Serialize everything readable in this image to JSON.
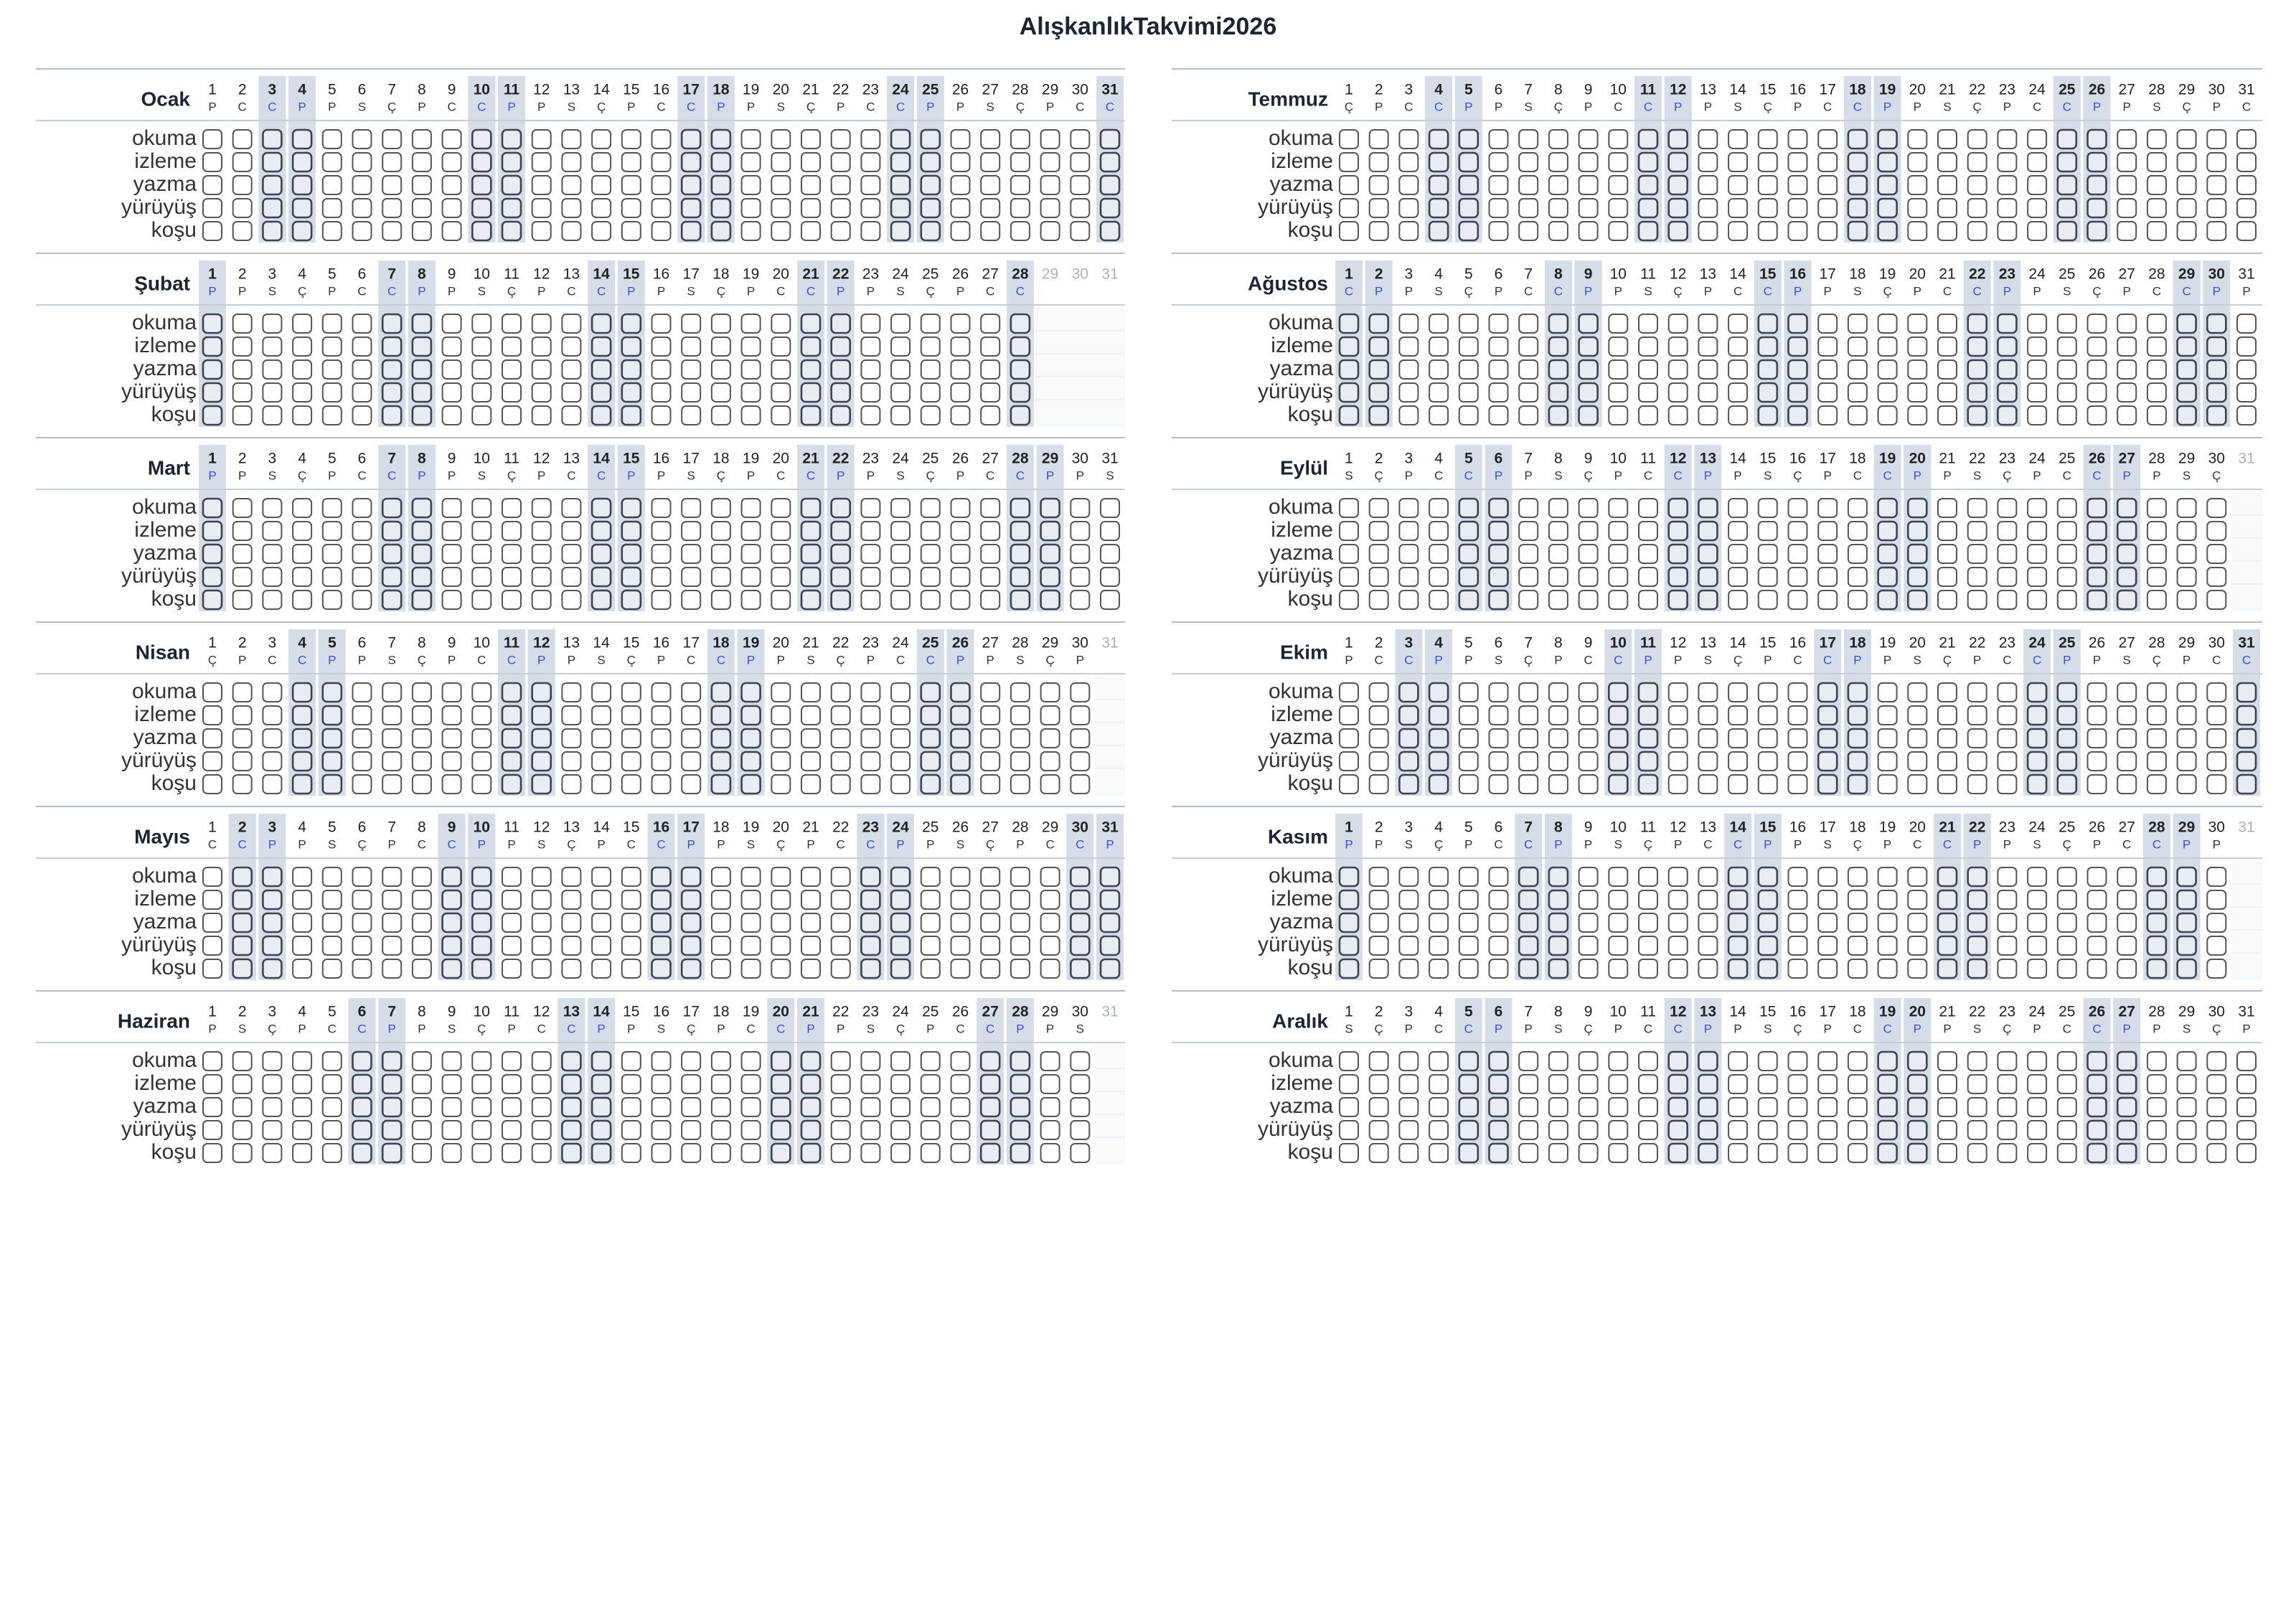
{
  "title": "AlışkanlıkTakvimi2026",
  "days": [
    1,
    2,
    3,
    4,
    5,
    6,
    7,
    8,
    9,
    10,
    11,
    12,
    13,
    14,
    15,
    16,
    17,
    18,
    19,
    20,
    21,
    22,
    23,
    24,
    25,
    26,
    27,
    28,
    29,
    30,
    31
  ],
  "habits": [
    "okuma",
    "izleme",
    "yazma",
    "yürüyüş",
    "koşu"
  ],
  "months": [
    {
      "name": "Ocak",
      "weekdays": [
        "P",
        "C",
        "C",
        "P",
        "P",
        "S",
        "Ç",
        "P",
        "C",
        "C",
        "P",
        "P",
        "S",
        "Ç",
        "P",
        "C",
        "C",
        "P",
        "P",
        "S",
        "Ç",
        "P",
        "C",
        "C",
        "P",
        "P",
        "S",
        "Ç",
        "P",
        "C",
        "C"
      ]
    },
    {
      "name": "Şubat",
      "weekdays": [
        "P",
        "P",
        "S",
        "Ç",
        "P",
        "C",
        "C",
        "P",
        "P",
        "S",
        "Ç",
        "P",
        "C",
        "C",
        "P",
        "P",
        "S",
        "Ç",
        "P",
        "C",
        "C",
        "P",
        "P",
        "S",
        "Ç",
        "P",
        "C",
        "C"
      ]
    },
    {
      "name": "Mart",
      "weekdays": [
        "P",
        "P",
        "S",
        "Ç",
        "P",
        "C",
        "C",
        "P",
        "P",
        "S",
        "Ç",
        "P",
        "C",
        "C",
        "P",
        "P",
        "S",
        "Ç",
        "P",
        "C",
        "C",
        "P",
        "P",
        "S",
        "Ç",
        "P",
        "C",
        "C",
        "P",
        "P",
        "S"
      ]
    },
    {
      "name": "Nisan",
      "weekdays": [
        "Ç",
        "P",
        "C",
        "C",
        "P",
        "P",
        "S",
        "Ç",
        "P",
        "C",
        "C",
        "P",
        "P",
        "S",
        "Ç",
        "P",
        "C",
        "C",
        "P",
        "P",
        "S",
        "Ç",
        "P",
        "C",
        "C",
        "P",
        "P",
        "S",
        "Ç",
        "P"
      ]
    },
    {
      "name": "Mayıs",
      "weekdays": [
        "C",
        "C",
        "P",
        "P",
        "S",
        "Ç",
        "P",
        "C",
        "C",
        "P",
        "P",
        "S",
        "Ç",
        "P",
        "C",
        "C",
        "P",
        "P",
        "S",
        "Ç",
        "P",
        "C",
        "C",
        "P",
        "P",
        "S",
        "Ç",
        "P",
        "C",
        "C",
        "P"
      ]
    },
    {
      "name": "Haziran",
      "weekdays": [
        "P",
        "S",
        "Ç",
        "P",
        "C",
        "C",
        "P",
        "P",
        "S",
        "Ç",
        "P",
        "C",
        "C",
        "P",
        "P",
        "S",
        "Ç",
        "P",
        "C",
        "C",
        "P",
        "P",
        "S",
        "Ç",
        "P",
        "C",
        "C",
        "P",
        "P",
        "S"
      ]
    },
    {
      "name": "Temmuz",
      "weekdays": [
        "Ç",
        "P",
        "C",
        "C",
        "P",
        "P",
        "S",
        "Ç",
        "P",
        "C",
        "C",
        "P",
        "P",
        "S",
        "Ç",
        "P",
        "C",
        "C",
        "P",
        "P",
        "S",
        "Ç",
        "P",
        "C",
        "C",
        "P",
        "P",
        "S",
        "Ç",
        "P",
        "C"
      ]
    },
    {
      "name": "Ağustos",
      "weekdays": [
        "C",
        "P",
        "P",
        "S",
        "Ç",
        "P",
        "C",
        "C",
        "P",
        "P",
        "S",
        "Ç",
        "P",
        "C",
        "C",
        "P",
        "P",
        "S",
        "Ç",
        "P",
        "C",
        "C",
        "P",
        "P",
        "S",
        "Ç",
        "P",
        "C",
        "C",
        "P",
        "P"
      ]
    },
    {
      "name": "Eylül",
      "weekdays": [
        "S",
        "Ç",
        "P",
        "C",
        "C",
        "P",
        "P",
        "S",
        "Ç",
        "P",
        "C",
        "C",
        "P",
        "P",
        "S",
        "Ç",
        "P",
        "C",
        "C",
        "P",
        "P",
        "S",
        "Ç",
        "P",
        "C",
        "C",
        "P",
        "P",
        "S",
        "Ç"
      ]
    },
    {
      "name": "Ekim",
      "weekdays": [
        "P",
        "C",
        "C",
        "P",
        "P",
        "S",
        "Ç",
        "P",
        "C",
        "C",
        "P",
        "P",
        "S",
        "Ç",
        "P",
        "C",
        "C",
        "P",
        "P",
        "S",
        "Ç",
        "P",
        "C",
        "C",
        "P",
        "P",
        "S",
        "Ç",
        "P",
        "C",
        "C"
      ]
    },
    {
      "name": "Kasım",
      "weekdays": [
        "P",
        "P",
        "S",
        "Ç",
        "P",
        "C",
        "C",
        "P",
        "P",
        "S",
        "Ç",
        "P",
        "C",
        "C",
        "P",
        "P",
        "S",
        "Ç",
        "P",
        "C",
        "C",
        "P",
        "P",
        "S",
        "Ç",
        "P",
        "C",
        "C",
        "P",
        "P"
      ]
    },
    {
      "name": "Aralık",
      "weekdays": [
        "S",
        "Ç",
        "P",
        "C",
        "C",
        "P",
        "P",
        "S",
        "Ç",
        "P",
        "C",
        "C",
        "P",
        "P",
        "S",
        "Ç",
        "P",
        "C",
        "C",
        "P",
        "P",
        "S",
        "Ç",
        "P",
        "C",
        "C",
        "P",
        "P",
        "S",
        "Ç",
        "P"
      ]
    }
  ]
}
